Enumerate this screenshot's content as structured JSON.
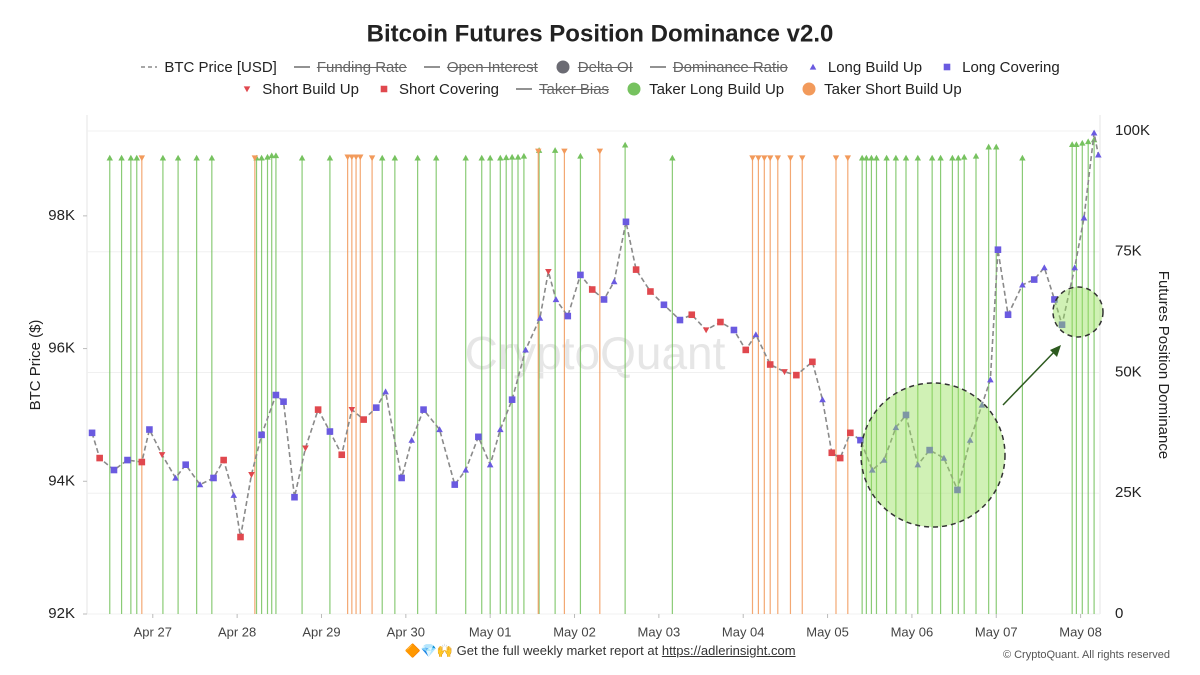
{
  "chart_data": {
    "type": "line",
    "title": "Bitcoin Futures Position Dominance v2.0",
    "ylabel": "BTC Price ($)",
    "y2label": "Futures Position Dominance",
    "watermark": "CryptoQuant",
    "footer_text": "🔶💎🙌 Get the full weekly market report at",
    "footer_link": "https://adlerinsight.com",
    "copyright": "© CryptoQuant. All rights reserved",
    "xlim": [
      -0.78,
      11.23
    ],
    "xticks": [
      {
        "value": 0,
        "label": "Apr 27"
      },
      {
        "value": 1,
        "label": "Apr 28"
      },
      {
        "value": 2,
        "label": "Apr 29"
      },
      {
        "value": 3,
        "label": "Apr 30"
      },
      {
        "value": 4,
        "label": "May 01"
      },
      {
        "value": 5,
        "label": "May 02"
      },
      {
        "value": 6,
        "label": "May 03"
      },
      {
        "value": 7,
        "label": "May 04"
      },
      {
        "value": 8,
        "label": "May 05"
      },
      {
        "value": 9,
        "label": "May 06"
      },
      {
        "value": 10,
        "label": "May 07"
      },
      {
        "value": 11,
        "label": "May 08"
      }
    ],
    "ylim": [
      92000,
      99520
    ],
    "yticks": [
      {
        "value": 92000,
        "label": "92K"
      },
      {
        "value": 94000,
        "label": "94K"
      },
      {
        "value": 96000,
        "label": "96K"
      },
      {
        "value": 98000,
        "label": "98K"
      }
    ],
    "y2lim": [
      0,
      103300
    ],
    "y2ticks": [
      0,
      {
        "value": 25000,
        "label": "25K"
      },
      {
        "value": 50000,
        "label": "50K"
      },
      {
        "value": 75000,
        "label": "75K"
      },
      {
        "value": 100000,
        "label": "100K"
      }
    ],
    "grid": true,
    "series": [
      {
        "name": "BTC Price [USD]",
        "mark": "line",
        "symbol": "dashed-line",
        "color": "#8a8a8a",
        "x": [
          -0.72,
          -0.63,
          -0.46,
          -0.3,
          -0.13,
          -0.04,
          0.11,
          0.27,
          0.39,
          0.56,
          0.72,
          0.84,
          0.96,
          1.04,
          1.17,
          1.29,
          1.46,
          1.55,
          1.68,
          1.81,
          1.96,
          2.1,
          2.24,
          2.36,
          2.5,
          2.65,
          2.76,
          2.95,
          3.07,
          3.21,
          3.4,
          3.58,
          3.71,
          3.86,
          4.0,
          4.12,
          4.26,
          4.42,
          4.59,
          4.69,
          4.78,
          4.92,
          5.07,
          5.21,
          5.35,
          5.47,
          5.61,
          5.73,
          5.9,
          6.06,
          6.25,
          6.39,
          6.56,
          6.73,
          6.89,
          7.03,
          7.15,
          7.32,
          7.49,
          7.63,
          7.82,
          7.94,
          8.05,
          8.15,
          8.27,
          8.39,
          8.53,
          8.67,
          8.81,
          8.93,
          9.07,
          9.21,
          9.38,
          9.54,
          9.69,
          9.83,
          9.93,
          10.02,
          10.14,
          10.31,
          10.45,
          10.57,
          10.69,
          10.78,
          10.93,
          11.04,
          11.16,
          11.21
        ],
        "values": [
          94730,
          94350,
          94170,
          94320,
          94290,
          94780,
          94400,
          94050,
          94250,
          93950,
          94050,
          94320,
          93790,
          93160,
          94100,
          94700,
          95300,
          95200,
          93760,
          94500,
          95080,
          94750,
          94400,
          95080,
          94930,
          95110,
          95350,
          94050,
          94620,
          95080,
          94780,
          93950,
          94170,
          94670,
          94250,
          94780,
          95230,
          95980,
          96460,
          97160,
          96740,
          96490,
          97110,
          96890,
          96740,
          97010,
          97910,
          97190,
          96860,
          96660,
          96430,
          96510,
          96280,
          96400,
          96280,
          95980,
          96210,
          95760,
          95650,
          95600,
          95800,
          95230,
          94430,
          94350,
          94730,
          94620,
          94170,
          94320,
          94810,
          95000,
          94250,
          94470,
          94350,
          93870,
          94620,
          95150,
          95530,
          97490,
          96510,
          96960,
          97040,
          97220,
          96740,
          96360,
          97220,
          97970,
          99250,
          98920
        ]
      },
      {
        "name": "Funding Rate",
        "hidden": true,
        "symbol": "line",
        "color": "#8a8a8a"
      },
      {
        "name": "Open Interest",
        "hidden": true,
        "symbol": "line",
        "color": "#8a8a8a"
      },
      {
        "name": "Delta OI",
        "hidden": true,
        "symbol": "circle",
        "color": "#6b6b73"
      },
      {
        "name": "Dominance Ratio",
        "hidden": true,
        "symbol": "line",
        "color": "#8a8a8a"
      },
      {
        "name": "Long Build Up",
        "mark": "triangle-up",
        "symbol": "triangle-up",
        "color": "#6a5ae0",
        "x": [
          0.27,
          0.56,
          0.96,
          2.76,
          3.07,
          3.4,
          3.71,
          4.0,
          4.12,
          4.42,
          4.59,
          4.78,
          5.47,
          7.15,
          7.94,
          8.53,
          8.67,
          8.81,
          9.07,
          9.38,
          9.69,
          9.83,
          9.93,
          10.31,
          10.57,
          10.93,
          11.04,
          11.16,
          11.21
        ],
        "values": [
          94050,
          93950,
          93790,
          95350,
          94620,
          94780,
          94170,
          94250,
          94780,
          95980,
          96460,
          96740,
          97010,
          96210,
          95230,
          94170,
          94320,
          94810,
          94250,
          94350,
          94620,
          95150,
          95530,
          96960,
          97220,
          97220,
          97970,
          99250,
          98920
        ]
      },
      {
        "name": "Long Covering",
        "mark": "square",
        "symbol": "square",
        "color": "#6a5ae0",
        "x": [
          -0.72,
          -0.46,
          -0.3,
          -0.04,
          0.39,
          0.72,
          1.29,
          1.46,
          1.55,
          1.68,
          2.1,
          2.65,
          2.95,
          3.21,
          3.58,
          3.86,
          4.26,
          4.92,
          5.07,
          5.35,
          5.61,
          6.06,
          6.25,
          6.89,
          8.39,
          8.93,
          9.21,
          9.54,
          10.02,
          10.14,
          10.45,
          10.69,
          10.78
        ],
        "values": [
          94730,
          94170,
          94320,
          94780,
          94250,
          94050,
          94700,
          95300,
          95200,
          93760,
          94750,
          95110,
          94050,
          95080,
          93950,
          94670,
          95230,
          96490,
          97110,
          96740,
          97910,
          96660,
          96430,
          96280,
          94620,
          95000,
          94470,
          93870,
          97490,
          96510,
          97040,
          96740,
          96360
        ]
      },
      {
        "name": "Short Build Up",
        "mark": "triangle-down",
        "symbol": "triangle-down",
        "color": "#e0484e",
        "x": [
          0.11,
          1.17,
          1.81,
          2.36,
          4.69,
          6.56,
          7.49
        ],
        "values": [
          94400,
          94100,
          94500,
          95080,
          97160,
          96280,
          95650
        ]
      },
      {
        "name": "Short Covering",
        "mark": "square",
        "symbol": "square",
        "color": "#e0484e",
        "x": [
          -0.63,
          -0.13,
          0.84,
          1.04,
          1.96,
          2.24,
          2.5,
          5.21,
          5.73,
          5.9,
          6.39,
          6.73,
          7.03,
          7.32,
          7.63,
          7.82,
          8.05,
          8.15,
          8.27
        ],
        "values": [
          94350,
          94290,
          94320,
          93160,
          95080,
          94400,
          94930,
          96890,
          97190,
          96860,
          96510,
          96400,
          95980,
          95760,
          95600,
          95800,
          94430,
          94350,
          94730
        ]
      },
      {
        "name": "Taker Bias",
        "hidden": true,
        "symbol": "line",
        "color": "#8a8a8a"
      },
      {
        "name": "Taker Long Build Up",
        "mark": "stem",
        "cap": "triangle-up",
        "symbol": "circle",
        "color": "#76c25f",
        "axis": "y2",
        "x": [
          -0.51,
          -0.37,
          -0.26,
          -0.19,
          0.12,
          0.3,
          0.52,
          0.7,
          1.23,
          1.29,
          1.36,
          1.41,
          1.46,
          1.77,
          2.1,
          2.72,
          2.87,
          3.14,
          3.36,
          3.71,
          3.9,
          4.0,
          4.12,
          4.19,
          4.26,
          4.33,
          4.4,
          4.58,
          4.77,
          5.07,
          5.6,
          6.16,
          8.41,
          8.46,
          8.52,
          8.58,
          8.7,
          8.81,
          8.93,
          9.07,
          9.24,
          9.34,
          9.48,
          9.55,
          9.62,
          9.76,
          9.91,
          10.0,
          10.31,
          10.9,
          10.95,
          11.02,
          11.09,
          11.16
        ],
        "values": [
          94400,
          94400,
          94400,
          94400,
          94400,
          94400,
          94400,
          94400,
          94400,
          94400,
          94600,
          94900,
          94900,
          94400,
          94400,
          94400,
          94400,
          94400,
          94400,
          94400,
          94400,
          94400,
          94400,
          94500,
          94600,
          94600,
          94800,
          96000,
          96000,
          94800,
          97100,
          94400,
          94400,
          94400,
          94400,
          94400,
          94400,
          94400,
          94400,
          94400,
          94400,
          94400,
          94400,
          94400,
          94600,
          94800,
          96700,
          96700,
          94400,
          97200,
          97200,
          97500,
          97800,
          98200
        ]
      },
      {
        "name": "Taker Short Build Up",
        "mark": "stem",
        "cap": "triangle-down",
        "symbol": "circle",
        "color": "#f29a5b",
        "axis": "y2",
        "x": [
          -0.13,
          1.21,
          2.31,
          2.36,
          2.41,
          2.46,
          2.6,
          4.57,
          4.88,
          5.3,
          7.11,
          7.18,
          7.25,
          7.32,
          7.41,
          7.56,
          7.7,
          8.1,
          8.24
        ],
        "values": [
          94400,
          94400,
          94600,
          94600,
          94600,
          94600,
          94400,
          95800,
          95800,
          95800,
          94400,
          94400,
          94400,
          94400,
          94400,
          94400,
          94400,
          94400,
          94400
        ]
      }
    ]
  }
}
